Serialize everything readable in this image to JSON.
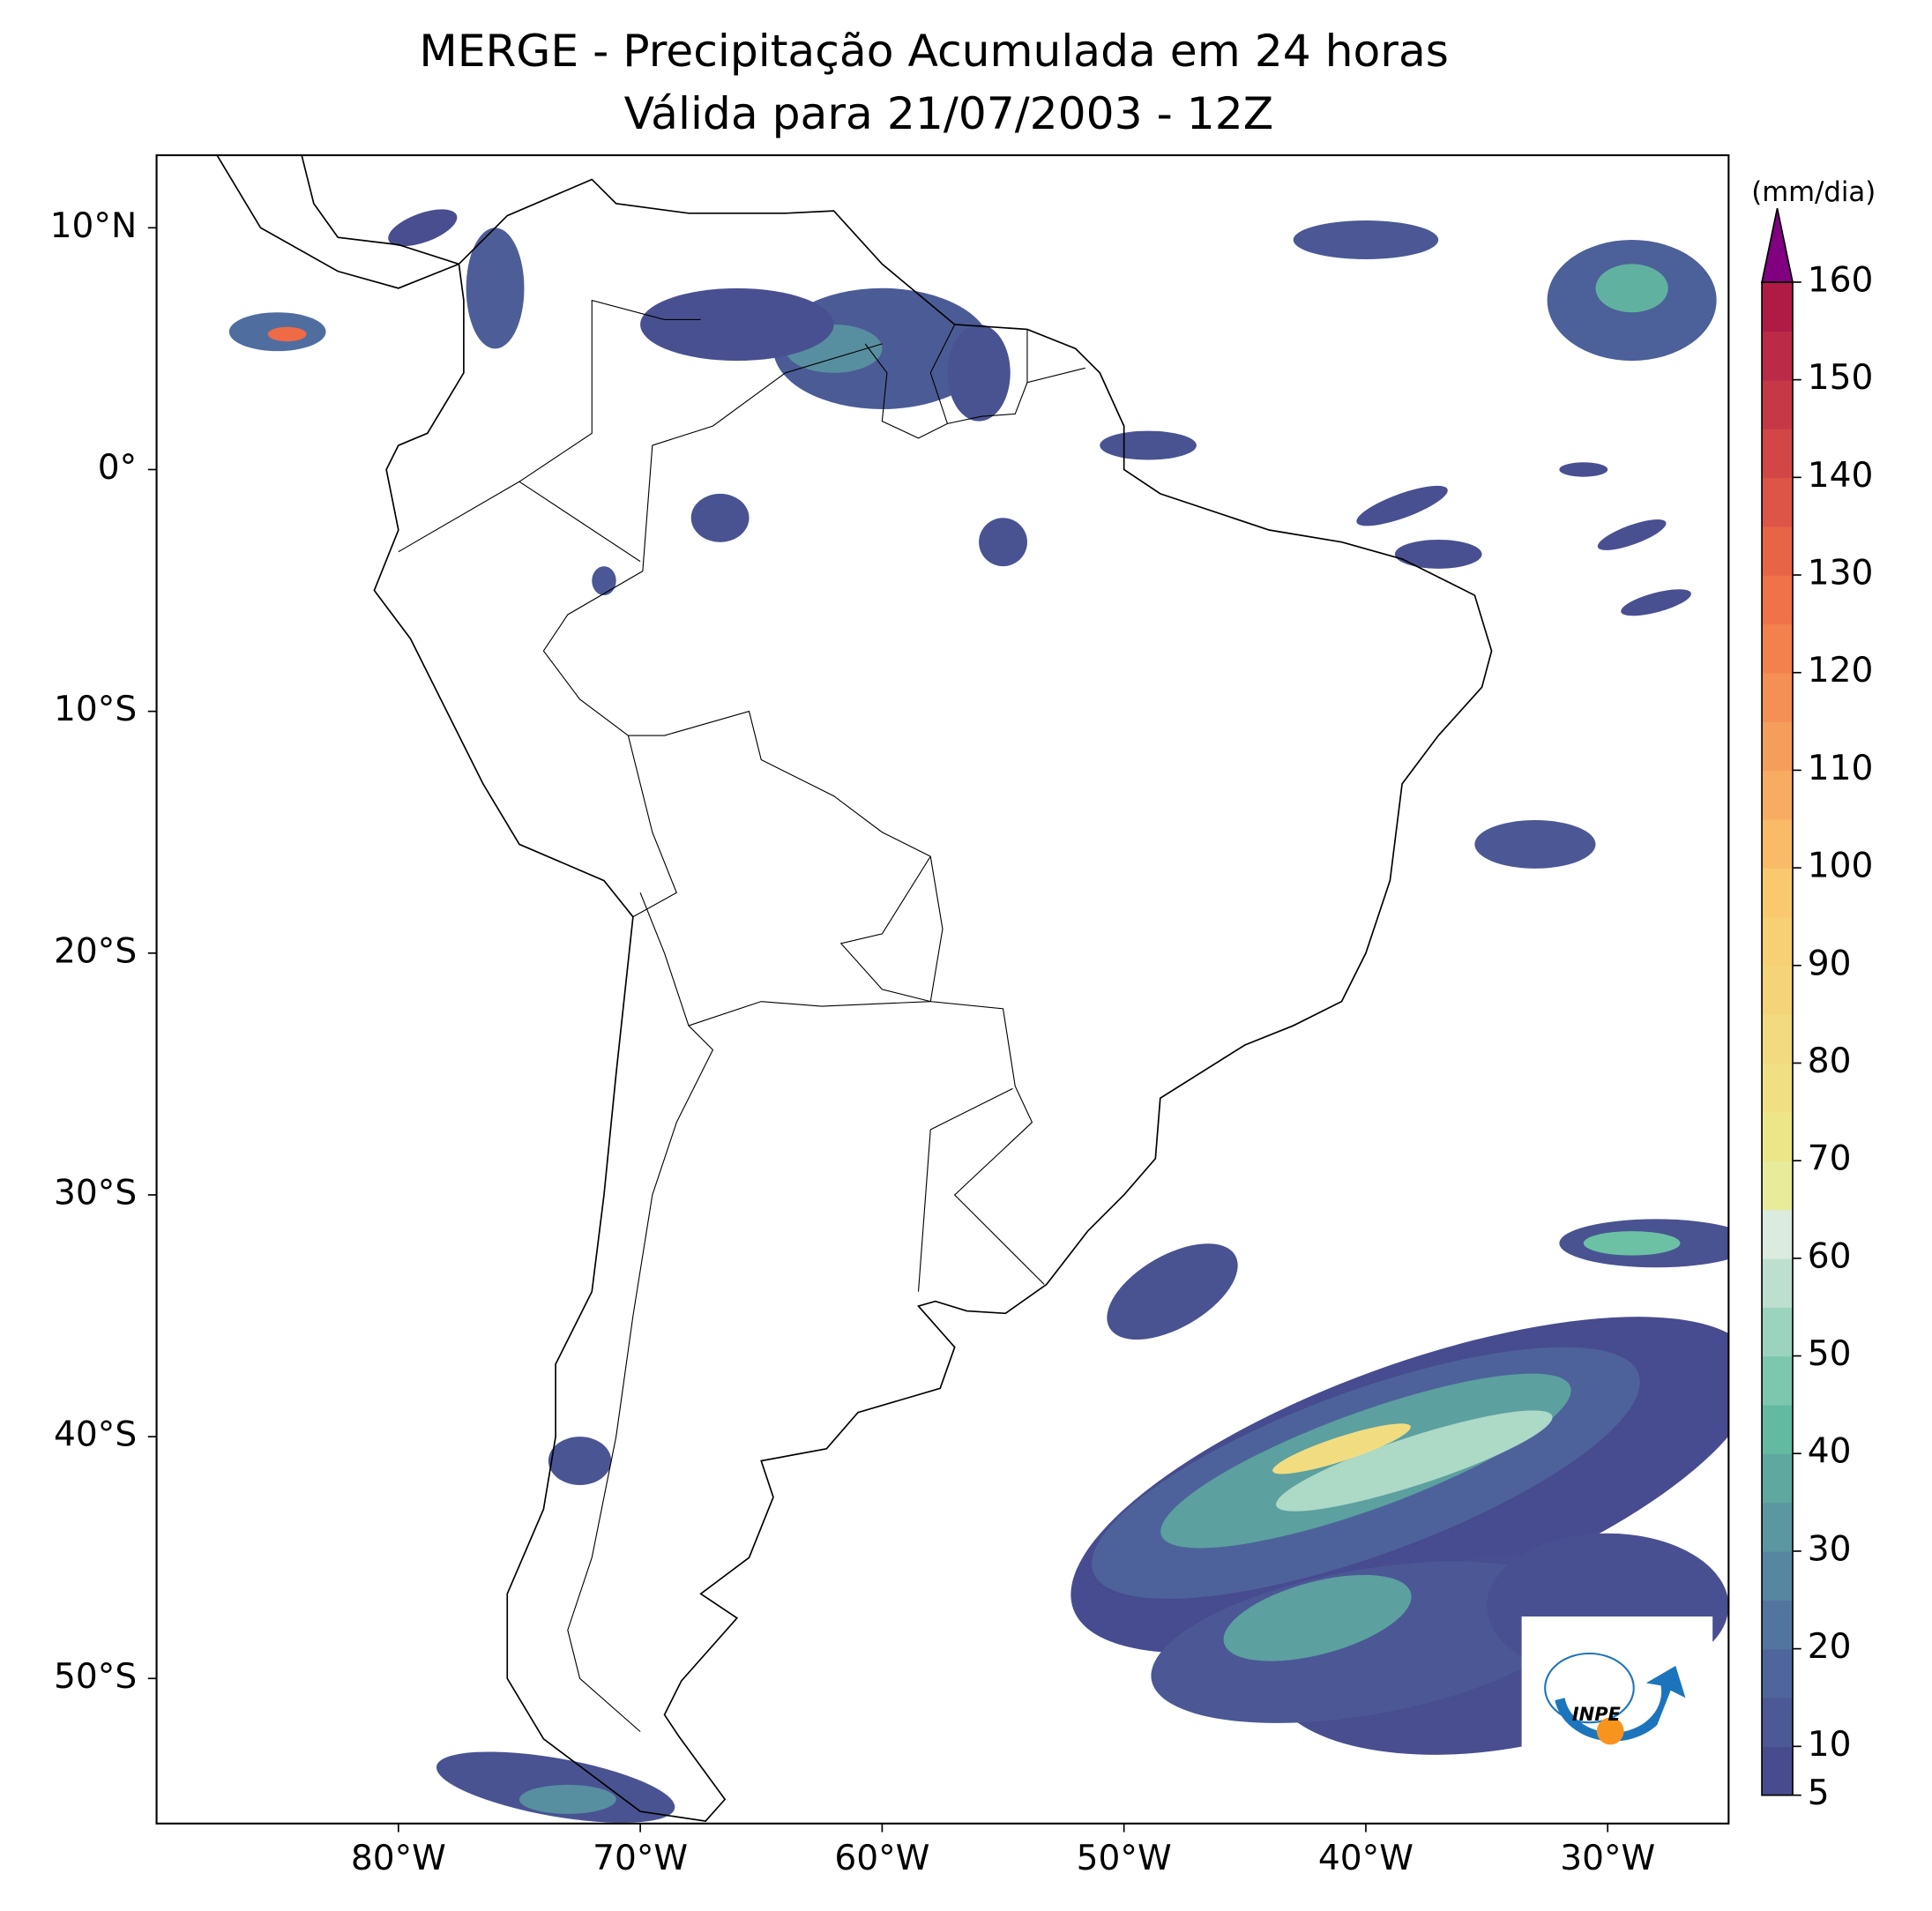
{
  "title": "MERGE - Precipitação Acumulada em 24 horas",
  "subtitle": "Válida para 21/07/2003 - 12Z",
  "map": {
    "lonlim": [
      -90,
      -25
    ],
    "latlim": [
      -56,
      13
    ],
    "lonticks": [
      {
        "value": -80,
        "label": "80°W"
      },
      {
        "value": -70,
        "label": "70°W"
      },
      {
        "value": -60,
        "label": "60°W"
      },
      {
        "value": -50,
        "label": "50°W"
      },
      {
        "value": -40,
        "label": "40°W"
      },
      {
        "value": -30,
        "label": "30°W"
      }
    ],
    "latticks": [
      {
        "value": 10,
        "label": "10°N"
      },
      {
        "value": 0,
        "label": "0°"
      },
      {
        "value": -10,
        "label": "10°S"
      },
      {
        "value": -20,
        "label": "20°S"
      },
      {
        "value": -30,
        "label": "30°S"
      },
      {
        "value": -40,
        "label": "40°S"
      },
      {
        "value": -50,
        "label": "50°S"
      }
    ]
  },
  "colorbar": {
    "label": "(mm/dia)",
    "range": [
      5,
      160
    ],
    "ticks": [
      5,
      10,
      20,
      30,
      40,
      50,
      60,
      70,
      80,
      90,
      100,
      110,
      120,
      130,
      140,
      150,
      160
    ]
  },
  "logo": {
    "text": "INPE"
  }
}
